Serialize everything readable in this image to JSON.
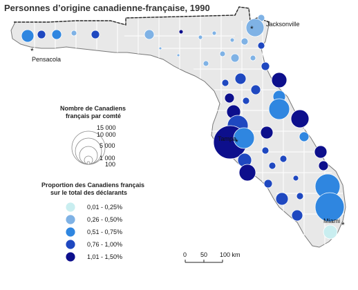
{
  "title": "Personnes d’origine canadienne-française, 1990",
  "cities": {
    "pensacola": "Pensacola",
    "jacksonville": "Jacksonville",
    "tampa": "Tampa",
    "miami": "Miami"
  },
  "size_legend": {
    "title_line1": "Nombre de Canadiens",
    "title_line2": "français par comté",
    "values": [
      "15 000",
      "10 000",
      "5 000",
      "1 000",
      "100"
    ]
  },
  "color_legend": {
    "title_line1": "Proportion des Canadiens français",
    "title_line2": "sur le total des déclarants",
    "classes": [
      {
        "label": "0,01 - 0,25%",
        "color": "#c9eef0"
      },
      {
        "label": "0,26 - 0,50%",
        "color": "#7fb2e5"
      },
      {
        "label": "0,51 - 0,75%",
        "color": "#2f86e0"
      },
      {
        "label": "0,76 - 1,00%",
        "color": "#1f48c0"
      },
      {
        "label": "1,01 - 1,50%",
        "color": "#0d0f8c"
      }
    ]
  },
  "scale": {
    "ticks": [
      "0",
      "50",
      "100 km"
    ]
  },
  "colors": {
    "land": "#e8e8e8",
    "county_border": "#ffffff",
    "outline": "#555555"
  }
}
